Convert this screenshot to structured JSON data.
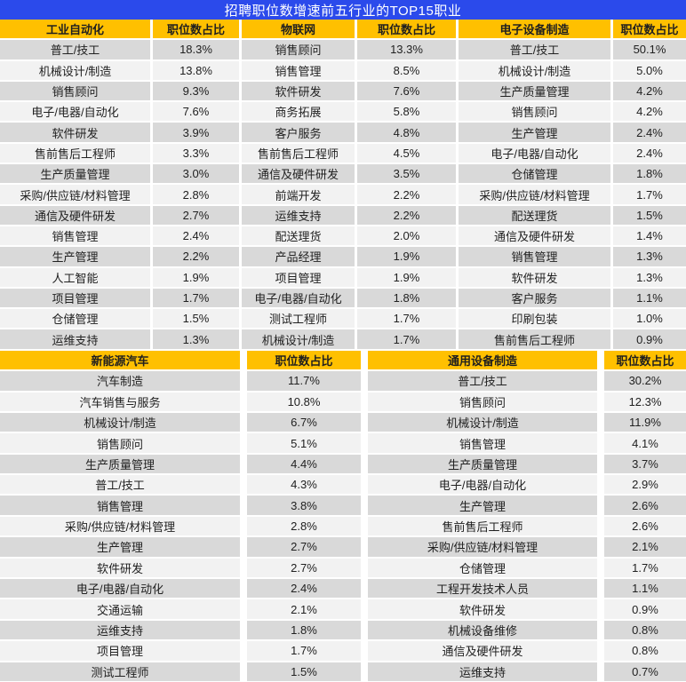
{
  "title": "招聘职位数增速前五行业的TOP15职业",
  "labels": {
    "percent_header": "职位数占比"
  },
  "colors": {
    "title_bg": "#2b4aeb",
    "title_text": "#ffffff",
    "header_bg": "#ffc000",
    "header_text": "#1f1f1f",
    "row_dark": "#d9d9d9",
    "row_light": "#f2f2f2"
  },
  "chart_data": {
    "type": "table",
    "title": "招聘职位数增速前五行业的TOP15职业",
    "value_column_label": "职位数占比",
    "sections": [
      {
        "groups": [
          {
            "industry": "工业自动化",
            "rows": [
              {
                "job": "普工/技工",
                "pct": "18.3%"
              },
              {
                "job": "机械设计/制造",
                "pct": "13.8%"
              },
              {
                "job": "销售顾问",
                "pct": "9.3%"
              },
              {
                "job": "电子/电器/自动化",
                "pct": "7.6%"
              },
              {
                "job": "软件研发",
                "pct": "3.9%"
              },
              {
                "job": "售前售后工程师",
                "pct": "3.3%"
              },
              {
                "job": "生产质量管理",
                "pct": "3.0%"
              },
              {
                "job": "采购/供应链/材料管理",
                "pct": "2.8%"
              },
              {
                "job": "通信及硬件研发",
                "pct": "2.7%"
              },
              {
                "job": "销售管理",
                "pct": "2.4%"
              },
              {
                "job": "生产管理",
                "pct": "2.2%"
              },
              {
                "job": "人工智能",
                "pct": "1.9%"
              },
              {
                "job": "项目管理",
                "pct": "1.7%"
              },
              {
                "job": "仓储管理",
                "pct": "1.5%"
              },
              {
                "job": "运维支持",
                "pct": "1.3%"
              }
            ]
          },
          {
            "industry": "物联网",
            "rows": [
              {
                "job": "销售顾问",
                "pct": "13.3%"
              },
              {
                "job": "销售管理",
                "pct": "8.5%"
              },
              {
                "job": "软件研发",
                "pct": "7.6%"
              },
              {
                "job": "商务拓展",
                "pct": "5.8%"
              },
              {
                "job": "客户服务",
                "pct": "4.8%"
              },
              {
                "job": "售前售后工程师",
                "pct": "4.5%"
              },
              {
                "job": "通信及硬件研发",
                "pct": "3.5%"
              },
              {
                "job": "前端开发",
                "pct": "2.2%"
              },
              {
                "job": "运维支持",
                "pct": "2.2%"
              },
              {
                "job": "配送理货",
                "pct": "2.0%"
              },
              {
                "job": "产品经理",
                "pct": "1.9%"
              },
              {
                "job": "项目管理",
                "pct": "1.9%"
              },
              {
                "job": "电子/电器/自动化",
                "pct": "1.8%"
              },
              {
                "job": "测试工程师",
                "pct": "1.7%"
              },
              {
                "job": "机械设计/制造",
                "pct": "1.7%"
              }
            ]
          },
          {
            "industry": "电子设备制造",
            "rows": [
              {
                "job": "普工/技工",
                "pct": "50.1%"
              },
              {
                "job": "机械设计/制造",
                "pct": "5.0%"
              },
              {
                "job": "生产质量管理",
                "pct": "4.2%"
              },
              {
                "job": "销售顾问",
                "pct": "4.2%"
              },
              {
                "job": "生产管理",
                "pct": "2.4%"
              },
              {
                "job": "电子/电器/自动化",
                "pct": "2.4%"
              },
              {
                "job": "仓储管理",
                "pct": "1.8%"
              },
              {
                "job": "采购/供应链/材料管理",
                "pct": "1.7%"
              },
              {
                "job": "配送理货",
                "pct": "1.5%"
              },
              {
                "job": "通信及硬件研发",
                "pct": "1.4%"
              },
              {
                "job": "销售管理",
                "pct": "1.3%"
              },
              {
                "job": "软件研发",
                "pct": "1.3%"
              },
              {
                "job": "客户服务",
                "pct": "1.1%"
              },
              {
                "job": "印刷包装",
                "pct": "1.0%"
              },
              {
                "job": "售前售后工程师",
                "pct": "0.9%"
              }
            ]
          }
        ]
      },
      {
        "groups": [
          {
            "industry": "新能源汽车",
            "rows": [
              {
                "job": "汽车制造",
                "pct": "11.7%"
              },
              {
                "job": "汽车销售与服务",
                "pct": "10.8%"
              },
              {
                "job": "机械设计/制造",
                "pct": "6.7%"
              },
              {
                "job": "销售顾问",
                "pct": "5.1%"
              },
              {
                "job": "生产质量管理",
                "pct": "4.4%"
              },
              {
                "job": "普工/技工",
                "pct": "4.3%"
              },
              {
                "job": "销售管理",
                "pct": "3.8%"
              },
              {
                "job": "采购/供应链/材料管理",
                "pct": "2.8%"
              },
              {
                "job": "生产管理",
                "pct": "2.7%"
              },
              {
                "job": "软件研发",
                "pct": "2.7%"
              },
              {
                "job": "电子/电器/自动化",
                "pct": "2.4%"
              },
              {
                "job": "交通运输",
                "pct": "2.1%"
              },
              {
                "job": "运维支持",
                "pct": "1.8%"
              },
              {
                "job": "项目管理",
                "pct": "1.7%"
              },
              {
                "job": "测试工程师",
                "pct": "1.5%"
              }
            ]
          },
          {
            "industry": "通用设备制造",
            "rows": [
              {
                "job": "普工/技工",
                "pct": "30.2%"
              },
              {
                "job": "销售顾问",
                "pct": "12.3%"
              },
              {
                "job": "机械设计/制造",
                "pct": "11.9%"
              },
              {
                "job": "销售管理",
                "pct": "4.1%"
              },
              {
                "job": "生产质量管理",
                "pct": "3.7%"
              },
              {
                "job": "电子/电器/自动化",
                "pct": "2.9%"
              },
              {
                "job": "生产管理",
                "pct": "2.6%"
              },
              {
                "job": "售前售后工程师",
                "pct": "2.6%"
              },
              {
                "job": "采购/供应链/材料管理",
                "pct": "2.1%"
              },
              {
                "job": "仓储管理",
                "pct": "1.7%"
              },
              {
                "job": "工程开发技术人员",
                "pct": "1.1%"
              },
              {
                "job": "软件研发",
                "pct": "0.9%"
              },
              {
                "job": "机械设备维修",
                "pct": "0.8%"
              },
              {
                "job": "通信及硬件研发",
                "pct": "0.8%"
              },
              {
                "job": "运维支持",
                "pct": "0.7%"
              }
            ]
          }
        ]
      }
    ]
  }
}
